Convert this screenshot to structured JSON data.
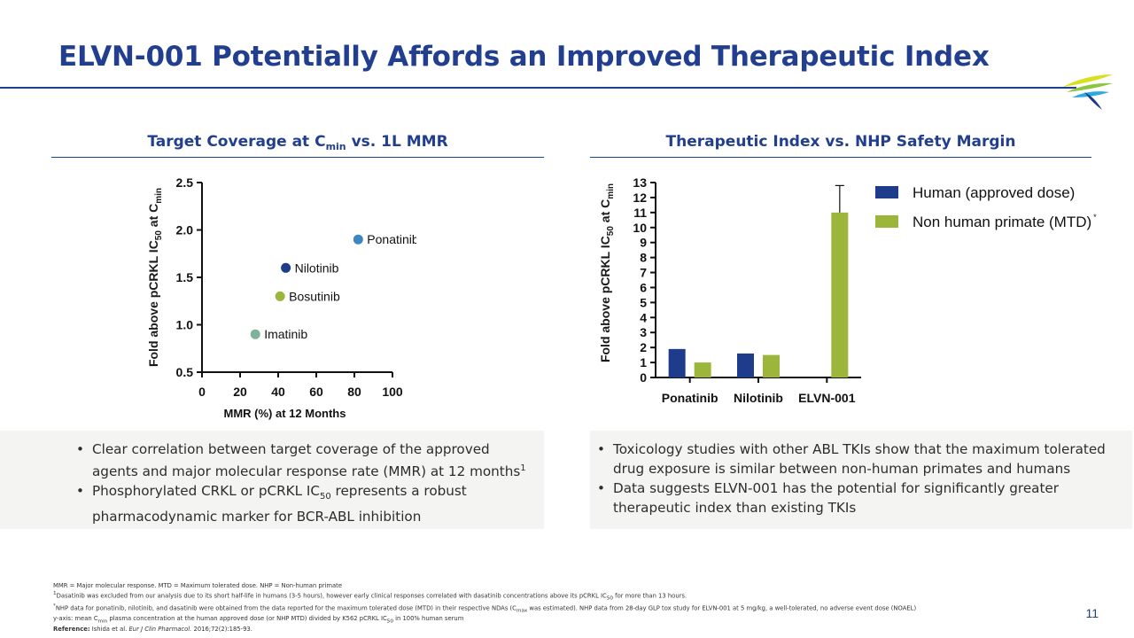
{
  "title": "ELVN-001 Potentially Affords an Improved Therapeutic Index",
  "left_section": {
    "heading_pre": "Target Coverage at C",
    "heading_sub": "min",
    "heading_post": " vs. 1L MMR",
    "bullets": [
      {
        "text": "Clear correlation between target coverage of the approved agents and major molecular response rate (MMR) at 12 months",
        "sup": "1"
      },
      {
        "pre": "Phosphorylated CRKL or pCRKL IC",
        "sub": "50",
        "post": " represents a robust pharmacodynamic marker for BCR-ABL inhibition"
      }
    ]
  },
  "right_section": {
    "heading": "Therapeutic Index vs. NHP Safety Margin",
    "bullets": [
      "Toxicology studies with other ABL TKIs show that the maximum tolerated drug exposure is similar between non-human primates and humans",
      "Data suggests ELVN-001 has the potential for significantly greater therapeutic index than existing TKIs"
    ]
  },
  "chart_data": [
    {
      "type": "scatter",
      "xlabel": "MMR (%) at 12 Months",
      "ylabel": "Fold above pCRKL IC50 at Cmin",
      "xlim": [
        0,
        100
      ],
      "ylim": [
        0.5,
        2.5
      ],
      "xticks": [
        "0",
        "20",
        "40",
        "60",
        "80",
        "100"
      ],
      "yticks": [
        "0.5",
        "1.0",
        "1.5",
        "2.0",
        "2.5"
      ],
      "points": [
        {
          "label": "Ponatinib",
          "x": 82,
          "y": 1.9,
          "color": "#3e86c0"
        },
        {
          "label": "Nilotinib",
          "x": 44,
          "y": 1.6,
          "color": "#1f3c8c"
        },
        {
          "label": "Bosutinib",
          "x": 41,
          "y": 1.3,
          "color": "#9cb63c"
        },
        {
          "label": "Imatinib",
          "x": 28,
          "y": 0.9,
          "color": "#7fb29a"
        }
      ]
    },
    {
      "type": "bar",
      "ylabel": "Fold above pCRKL IC50 at Cmin",
      "ylim": [
        0,
        13
      ],
      "yticks": [
        "0",
        "1",
        "2",
        "3",
        "4",
        "5",
        "6",
        "7",
        "8",
        "9",
        "10",
        "11",
        "12",
        "13"
      ],
      "categories": [
        "Ponatinib",
        "Nilotinib",
        "ELVN-001"
      ],
      "series": [
        {
          "name": "Human (approved dose)",
          "color": "#1f3c8c",
          "values": [
            1.9,
            1.6,
            null
          ]
        },
        {
          "name": "Non human primate (MTD)",
          "name_sup": "*",
          "color": "#9cb63c",
          "values": [
            1.0,
            1.5,
            11.0
          ]
        }
      ],
      "error_bar": {
        "category": "ELVN-001",
        "series": "Non human primate (MTD)",
        "upper": 12.8
      },
      "legend": "top-right"
    }
  ],
  "footnotes": {
    "l1": "MMR = Major molecular response. MTD = Maximum tolerated dose. NHP = Non-human primate",
    "l2_sup": "1",
    "l2_a": "Dasatinib was excluded from our analysis due to its short half-life in humans (3-5 hours), however early clinical responses correlated with dasatinib concentrations above its pCRKL IC",
    "l2_sub": "50",
    "l2_b": " for more than 13 hours.",
    "l3_sup": "*",
    "l3_a": "NHP data for ponatinib, nilotinib, and dasatinib were obtained from the data reported for the maximum tolerated dose (MTD) in their respective NDAs (C",
    "l3_sub": "max",
    "l3_b": " was estimated). NHP data from 28-day GLP tox study for ELVN-001 at 5 mg/kg, a well-tolerated, no adverse event dose (NOAEL)",
    "l4_a": "y-axis: mean C",
    "l4_sub1": "min",
    "l4_b": " plasma concentration at the human approved dose (or NHP MTD) divided by K562 pCRKL IC",
    "l4_sub2": "50",
    "l4_c": " in 100% human serum",
    "ref_label": "Reference:",
    "ref_text": " Ishida et al. ",
    "ref_journal": "Eur J Clin Pharmacol.",
    "ref_tail": " 2016;72(2):185-93."
  },
  "page_number": "11",
  "colors": {
    "brand": "#223f8f",
    "human": "#1f3c8c",
    "nhp": "#9cb63c"
  }
}
